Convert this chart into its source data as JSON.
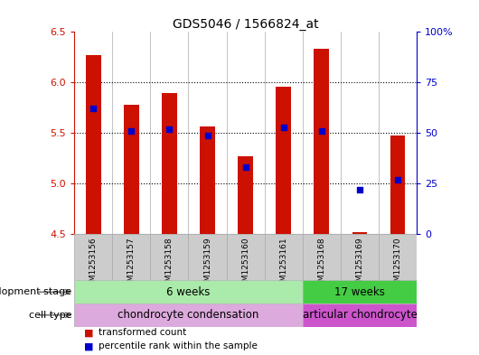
{
  "title": "GDS5046 / 1566824_at",
  "samples": [
    "GSM1253156",
    "GSM1253157",
    "GSM1253158",
    "GSM1253159",
    "GSM1253160",
    "GSM1253161",
    "GSM1253168",
    "GSM1253169",
    "GSM1253170"
  ],
  "transformed_counts": [
    6.27,
    5.78,
    5.9,
    5.57,
    5.27,
    5.96,
    6.33,
    4.52,
    5.48
  ],
  "percentile_ranks": [
    62,
    51,
    52,
    49,
    33,
    53,
    51,
    22,
    27
  ],
  "ylim_left": [
    4.5,
    6.5
  ],
  "ylim_right": [
    0,
    100
  ],
  "yticks_left": [
    4.5,
    5.0,
    5.5,
    6.0,
    6.5
  ],
  "yticks_right": [
    0,
    25,
    50,
    75,
    100
  ],
  "ytick_labels_right": [
    "0",
    "25",
    "50",
    "75",
    "100%"
  ],
  "bar_color": "#cc1100",
  "dot_color": "#0000cc",
  "dev_stage_groups": [
    {
      "label": "6 weeks",
      "start": 0,
      "end": 5,
      "color": "#aaeaaa"
    },
    {
      "label": "17 weeks",
      "start": 6,
      "end": 8,
      "color": "#44cc44"
    }
  ],
  "cell_type_groups": [
    {
      "label": "chondrocyte condensation",
      "start": 0,
      "end": 5,
      "color": "#ddaadd"
    },
    {
      "label": "articular chondrocyte",
      "start": 6,
      "end": 8,
      "color": "#cc55cc"
    }
  ],
  "legend_items": [
    {
      "color": "#cc1100",
      "label": "transformed count"
    },
    {
      "color": "#0000cc",
      "label": "percentile rank within the sample"
    }
  ],
  "dev_stage_label": "development stage",
  "cell_type_label": "cell type",
  "left_axis_color": "#cc1100",
  "right_axis_color": "#0000cc",
  "grid_yticks": [
    5.0,
    5.5,
    6.0
  ],
  "xticklabel_bg": "#cccccc",
  "col_sep_color": "#aaaaaa"
}
